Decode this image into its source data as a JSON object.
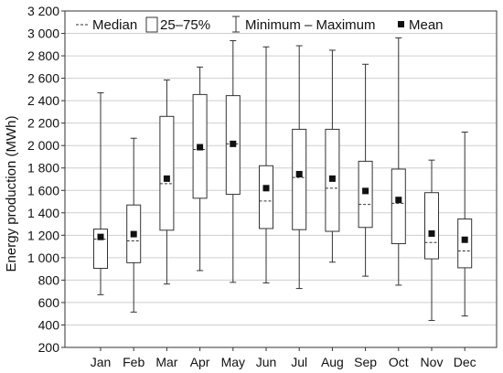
{
  "chart_data": {
    "type": "box",
    "ylabel": "Energy production (MWh)",
    "ylim": [
      200,
      3200
    ],
    "ytick_step": 200,
    "ytick_labels": [
      "200",
      "400",
      "600",
      "800",
      "1 000",
      "1 200",
      "1 400",
      "1 600",
      "1 800",
      "2 000",
      "2 200",
      "2 400",
      "2 600",
      "2 800",
      "3 000",
      "3 200"
    ],
    "grid": true,
    "legend": {
      "placement": "top",
      "items": [
        "Median",
        "25–75%",
        "Minimum – Maximum",
        "Mean"
      ]
    },
    "categories": [
      "Jan",
      "Feb",
      "Mar",
      "Apr",
      "May",
      "Jun",
      "Jul",
      "Aug",
      "Sep",
      "Oct",
      "Nov",
      "Dec"
    ],
    "min": [
      670,
      515,
      765,
      885,
      780,
      775,
      725,
      960,
      835,
      755,
      440,
      480
    ],
    "q1": [
      905,
      955,
      1245,
      1530,
      1565,
      1260,
      1250,
      1235,
      1270,
      1125,
      990,
      910
    ],
    "median": [
      1165,
      1150,
      1660,
      1965,
      2015,
      1505,
      1715,
      1620,
      1475,
      1485,
      1135,
      1060
    ],
    "mean": [
      1185,
      1210,
      1705,
      1985,
      2015,
      1620,
      1745,
      1705,
      1595,
      1515,
      1215,
      1160
    ],
    "q3": [
      1255,
      1470,
      2260,
      2455,
      2445,
      1820,
      2145,
      2145,
      1860,
      1790,
      1580,
      1345
    ],
    "max": [
      2470,
      2065,
      2585,
      2700,
      2935,
      2880,
      2890,
      2850,
      2725,
      2960,
      1870,
      2120
    ],
    "colors": {
      "grid": "#cfcfcf",
      "box_stroke": "#333333",
      "mean_marker": "#111111"
    }
  }
}
